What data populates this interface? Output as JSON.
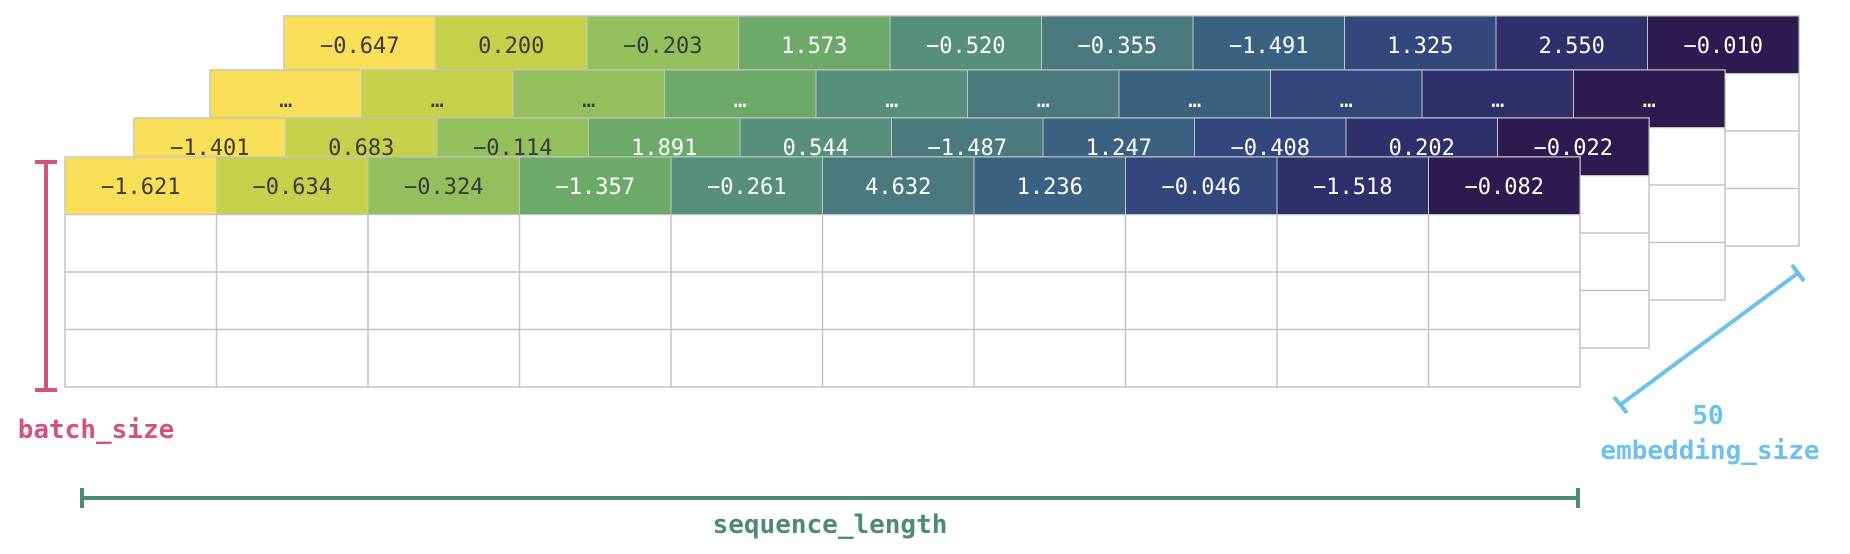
{
  "layers": [
    {
      "id": "layer-4",
      "values": [
        "−0.647",
        "0.200",
        "−0.203",
        "1.573",
        "−0.520",
        "−0.355",
        "−1.491",
        "1.325",
        "2.550",
        "−0.010"
      ]
    },
    {
      "id": "layer-3",
      "values": [
        "…",
        "…",
        "…",
        "…",
        "…",
        "…",
        "…",
        "…",
        "…",
        "…"
      ]
    },
    {
      "id": "layer-2",
      "values": [
        "−1.401",
        "0.683",
        "−0.114",
        "1.891",
        "0.544",
        "−1.487",
        "1.247",
        "−0.408",
        "0.202",
        "−0.022"
      ]
    },
    {
      "id": "layer-1",
      "values": [
        "−1.621",
        "−0.634",
        "−0.324",
        "−1.357",
        "−0.261",
        "4.632",
        "1.236",
        "−0.046",
        "−1.518",
        "−0.082"
      ]
    }
  ],
  "palette": [
    "#f9df57",
    "#c5d14a",
    "#93c05d",
    "#6daa6a",
    "#56907a",
    "#4a7a7d",
    "#3b6180",
    "#34477d",
    "#2f2f6c",
    "#2c1b4f"
  ],
  "text_colors": [
    "#3a3a3a",
    "#3a3a3a",
    "#3a3a3a",
    "#ffffff",
    "#ffffff",
    "#ffffff",
    "#ffffff",
    "#ffffff",
    "#ffffff",
    "#ffffff"
  ],
  "grid_color": "#c4c4c4",
  "labels": {
    "batch": "batch_size",
    "sequence": "sequence_length",
    "embedding_count": "50",
    "embedding": "embedding_size"
  },
  "colors": {
    "batch": "#d4527c",
    "sequence": "#4e8a78",
    "embedding": "#6ec1ea"
  }
}
